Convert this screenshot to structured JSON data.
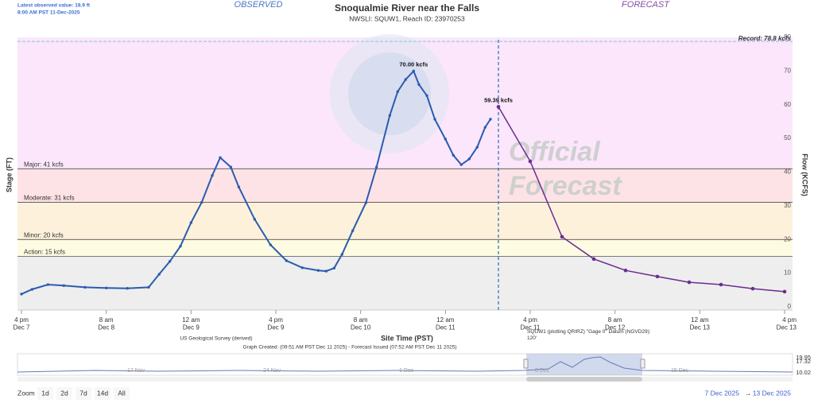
{
  "chart_data": {
    "type": "line",
    "title": "Snoqualmie River near the Falls",
    "subtitle": "NWSLI: SQUW1, Reach ID: 23970253",
    "observed_label": "OBSERVED",
    "forecast_label": "FORECAST",
    "latest": [
      "Latest observed value: 18.9 ft",
      "8:00 AM PST 11-Dec-2025"
    ],
    "ylabel": "Stage (FT)",
    "y2label": "Flow (KCFS)",
    "xlabel": "Site Time (PST)",
    "source": "US Geological Survey (derived)",
    "created": "Graph Created: (09:51 AM PST Dec 11 2025) - Forecast Issued (07:52 AM PST Dec 11 2025)",
    "datum_note": "SQUW1 (plotting QRIRZ) \"Gage 0\" Datum (NGVD29):\n120'",
    "watermark": [
      "Official",
      "Forecast"
    ],
    "xlim": [
      "Dec 7 16:00",
      "Dec 13 16:00"
    ],
    "xticks": [
      {
        "value": "Dec 7 16:00",
        "label": "4 pm\nDec 7"
      },
      {
        "value": "Dec 8 08:00",
        "label": "8 am\nDec 8"
      },
      {
        "value": "Dec 9 00:00",
        "label": "12 am\nDec 9"
      },
      {
        "value": "Dec 9 16:00",
        "label": "4 pm\nDec 9"
      },
      {
        "value": "Dec 10 08:00",
        "label": "8 am\nDec 10"
      },
      {
        "value": "Dec 11 00:00",
        "label": "12 am\nDec 11"
      },
      {
        "value": "Dec 11 16:00",
        "label": "4 pm\nDec 11"
      },
      {
        "value": "Dec 12 08:00",
        "label": "8 am\nDec 12"
      },
      {
        "value": "Dec 13 00:00",
        "label": "12 am\nDec 13"
      },
      {
        "value": "Dec 13 16:00",
        "label": "4 pm\nDec 13"
      }
    ],
    "y2lim": [
      0,
      80
    ],
    "y2ticks": [
      0,
      10,
      20,
      30,
      40,
      50,
      60,
      70,
      80
    ],
    "thresholds": [
      {
        "label": "Major: 41 kcfs",
        "value": 41,
        "color": "#fbe6fb"
      },
      {
        "label": "Moderate: 31 kcfs",
        "value": 31,
        "color": "#fde3e6"
      },
      {
        "label": "Minor: 20 kcfs",
        "value": 20,
        "color": "#fdf1dc"
      },
      {
        "label": "Action: 15 kcfs",
        "value": 15,
        "color": "#fdfbe1"
      }
    ],
    "below_color": "#eeeeee",
    "record": {
      "label": "Record: 78.8 kcfs",
      "value": 78.8
    },
    "series": [
      {
        "color": "#2b5cae",
        "axis": "y2",
        "x": [
          "Dec 7 16:00",
          "Dec 7 18:00",
          "Dec 7 21:00",
          "Dec 8 00:00",
          "Dec 8 04:00",
          "Dec 8 08:00",
          "Dec 8 12:00",
          "Dec 8 16:00",
          "Dec 8 18:00",
          "Dec 8 20:00",
          "Dec 8 22:00",
          "Dec 9 00:00",
          "Dec 9 02:00",
          "Dec 9 04:00",
          "Dec 9 05:30",
          "Dec 9 07:30",
          "Dec 9 09:00",
          "Dec 9 12:00",
          "Dec 9 15:00",
          "Dec 9 18:00",
          "Dec 9 21:00",
          "Dec 10 00:00",
          "Dec 10 01:30",
          "Dec 10 03:00",
          "Dec 10 04:30",
          "Dec 10 06:30",
          "Dec 10 09:00",
          "Dec 10 11:00",
          "Dec 10 13:30",
          "Dec 10 15:00",
          "Dec 10 16:30",
          "Dec 10 18:00",
          "Dec 10 19:00",
          "Dec 10 20:30",
          "Dec 10 22:00",
          "Dec 11 00:00",
          "Dec 11 01:30",
          "Dec 11 03:00",
          "Dec 11 04:30",
          "Dec 11 06:00",
          "Dec 11 07:30",
          "Dec 11 08:30"
        ],
        "values": [
          3.8,
          5.2,
          6.6,
          6.3,
          5.8,
          5.6,
          5.5,
          5.8,
          9.7,
          13.5,
          18,
          25,
          31,
          39,
          44.3,
          41.5,
          35.6,
          26,
          18.4,
          13.7,
          11.6,
          10.8,
          10.6,
          11.5,
          15.6,
          22.6,
          30.9,
          41.5,
          56.8,
          63.9,
          67.5,
          70,
          66,
          62.7,
          55.7,
          49.8,
          45,
          42.2,
          43.9,
          47.4,
          53.3,
          55.7
        ],
        "value_labels": [
          null,
          null,
          null,
          null,
          null,
          null,
          null,
          null,
          null,
          null,
          null,
          null,
          null,
          null,
          null,
          null,
          null,
          null,
          null,
          null,
          null,
          null,
          null,
          null,
          null,
          null,
          null,
          null,
          null,
          null,
          null,
          "70.00 kcfs",
          null,
          null,
          null,
          null,
          null,
          null,
          null,
          null,
          null,
          null
        ]
      },
      {
        "color": "#6a2c91",
        "axis": "y2",
        "x": [
          "Dec 11 10:00",
          "Dec 11 16:00",
          "Dec 11 22:00",
          "Dec 12 04:00",
          "Dec 12 10:00",
          "Dec 12 16:00",
          "Dec 12 22:00",
          "Dec 13 04:00",
          "Dec 13 10:00",
          "Dec 13 16:00"
        ],
        "values": [
          59.39,
          43.2,
          20.8,
          14.2,
          10.8,
          9,
          7.3,
          6.6,
          5.4,
          4.5
        ],
        "value_labels": [
          "59.39 kcfs",
          null,
          null,
          null,
          null,
          null,
          null,
          null,
          null,
          null
        ]
      }
    ],
    "navigator": {
      "xticks": [
        "17 Nov",
        "24 Nov",
        "1 Dec",
        "8 Dec",
        "15 Dec"
      ],
      "yticks": [
        19.95,
        17.32,
        10.02
      ]
    },
    "zoom": {
      "label": "Zoom",
      "buttons": [
        "1d",
        "2d",
        "7d",
        "14d",
        "All"
      ]
    },
    "range": {
      "from": "7 Dec 2025",
      "arrow": "→",
      "to": "13 Dec 2025"
    }
  }
}
